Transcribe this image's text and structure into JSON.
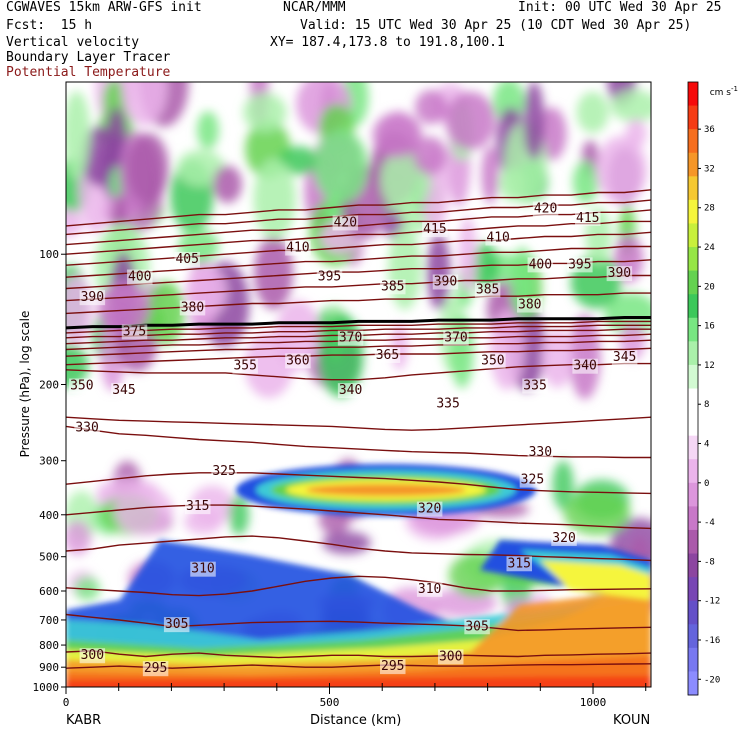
{
  "header": {
    "model_line": "CGWAVES 15km ARW-GFS init",
    "org": "NCAR/MMM",
    "init": "Init: 00 UTC Wed 30 Apr 25",
    "fcst": "Fcst:  15 h",
    "valid": "Valid: 15 UTC Wed 30 Apr 25 (10 CDT Wed 30 Apr 25)",
    "field1": "Vertical velocity",
    "xy": "XY= 187.4,173.8 to 191.8,100.1",
    "field2": "Boundary Layer Tracer",
    "field3": "Potential Temperature",
    "field3_color": "#8b1a1a"
  },
  "colorbar": {
    "unit_label": "cm s",
    "unit_exp": "-1",
    "ticks": [
      "36",
      "32",
      "28",
      "24",
      "20",
      "16",
      "12",
      "8",
      "4",
      "0",
      "-4",
      "-8",
      "-12",
      "-16",
      "-20"
    ],
    "colors": [
      "#f50a0a",
      "#f53c14",
      "#f56e1e",
      "#f59628",
      "#f5c832",
      "#f5f53c",
      "#c8f03c",
      "#96e646",
      "#64d250",
      "#3cc85a",
      "#78e682",
      "#aaf0aa",
      "#d2fad2",
      "#ffffff",
      "#ffffff",
      "#f5d7f5",
      "#ebb4eb",
      "#dc96dc",
      "#c878c8",
      "#aa5aaa",
      "#8c46a0",
      "#7846b4",
      "#6450c8",
      "#6464dc",
      "#7878f0",
      "#8c8cff"
    ]
  },
  "chart_data": {
    "type": "heatmap",
    "title": "Vertical velocity",
    "ylabel": "Pressure (hPa), log scale",
    "xlabel": "Distance (km)",
    "y_scale": "log",
    "y_ticks": [
      100,
      200,
      300,
      400,
      500,
      600,
      700,
      800,
      900,
      1000
    ],
    "x_ticks": [
      0,
      500,
      1000
    ],
    "xlim": [
      0,
      1110
    ],
    "ylim": [
      1000,
      40
    ],
    "x_endpoints": [
      "KABR",
      "KOUN"
    ],
    "theta_contours": [
      {
        "value": 295,
        "p": [
          905,
          900,
          895,
          900,
          905,
          900,
          895,
          890,
          895,
          900,
          900,
          895,
          890,
          892,
          895,
          895,
          893,
          890,
          888,
          888,
          886,
          885,
          884
        ]
      },
      {
        "value": 300,
        "p": [
          830,
          825,
          840,
          850,
          840,
          835,
          845,
          850,
          855,
          850,
          845,
          845,
          850,
          850,
          848,
          845,
          848,
          850,
          845,
          843,
          840,
          838,
          835
        ]
      },
      {
        "value": 305,
        "p": [
          680,
          690,
          700,
          712,
          725,
          720,
          715,
          710,
          708,
          706,
          705,
          708,
          712,
          715,
          718,
          722,
          730,
          740,
          738,
          735,
          732,
          730,
          728
        ]
      },
      {
        "value": 310,
        "p": [
          590,
          595,
          600,
          605,
          612,
          615,
          610,
          600,
          585,
          570,
          560,
          555,
          558,
          565,
          575,
          590,
          600,
          600,
          598,
          596,
          595,
          594,
          593
        ]
      },
      {
        "value": 315,
        "p": [
          485,
          480,
          470,
          465,
          460,
          455,
          450,
          448,
          452,
          460,
          468,
          478,
          485,
          490,
          492,
          494,
          495,
          497,
          500,
          502,
          505,
          507,
          510
        ]
      },
      {
        "value": 320,
        "p": [
          400,
          395,
          390,
          385,
          382,
          380,
          380,
          382,
          385,
          388,
          392,
          396,
          400,
          405,
          410,
          412,
          415,
          418,
          420,
          422,
          425,
          428,
          430
        ]
      },
      {
        "value": 325,
        "p": [
          340,
          335,
          330,
          325,
          322,
          320,
          320,
          320,
          322,
          324,
          326,
          328,
          330,
          333,
          336,
          340,
          345,
          350,
          352,
          354,
          355,
          356,
          357
        ]
      },
      {
        "value": 330,
        "p": [
          250,
          255,
          260,
          262,
          265,
          268,
          270,
          272,
          275,
          278,
          280,
          282,
          284,
          286,
          287,
          288,
          290,
          292,
          293,
          294,
          294,
          295,
          295
        ]
      },
      {
        "value": 335,
        "p": [
          238,
          240,
          242,
          243,
          244,
          245,
          246,
          247,
          248,
          249,
          250,
          252,
          254,
          255,
          254,
          252,
          250,
          248,
          246,
          244,
          242,
          240,
          238
        ]
      },
      {
        "value": 340,
        "p": [
          185,
          186,
          187,
          188,
          188,
          188,
          188,
          190,
          192,
          194,
          195,
          195,
          193,
          190,
          188,
          186,
          184,
          182,
          181,
          180,
          180,
          179,
          179
        ]
      },
      {
        "value": 345,
        "p": [
          180,
          179,
          178,
          177,
          176,
          175,
          174,
          173,
          172,
          172,
          171,
          171,
          170,
          170,
          170,
          169,
          168,
          168,
          167,
          167,
          166,
          166,
          165
        ]
      },
      {
        "value": 350,
        "p": [
          172,
          171,
          170,
          169,
          168,
          167,
          166,
          166,
          165,
          165,
          164,
          164,
          163,
          163,
          162,
          162,
          161,
          161,
          160,
          160,
          159,
          159,
          158
        ]
      },
      {
        "value": 355,
        "p": [
          166,
          165,
          164,
          163,
          162,
          162,
          161,
          160,
          160,
          159,
          159,
          158,
          158,
          157,
          157,
          156,
          156,
          155,
          155,
          155,
          154,
          154,
          153
        ]
      },
      {
        "value": 360,
        "p": [
          161,
          160,
          159,
          158,
          158,
          157,
          156,
          156,
          155,
          155,
          154,
          154,
          153,
          153,
          152,
          152,
          151,
          151,
          150,
          150,
          150,
          149,
          149
        ]
      },
      {
        "value": 365,
        "p": [
          156,
          155,
          155,
          154,
          153,
          153,
          152,
          152,
          151,
          151,
          150,
          150,
          149,
          149,
          149,
          148,
          148,
          147,
          147,
          147,
          146,
          146,
          146
        ]
      },
      {
        "value": 370,
        "p": [
          152,
          151,
          150,
          150,
          149,
          149,
          148,
          148,
          147,
          147,
          147,
          146,
          146,
          146,
          145,
          145,
          145,
          144,
          144,
          144,
          143,
          143,
          143
        ]
      },
      {
        "value": 375,
        "p": [
          148,
          147,
          147,
          146,
          146,
          145,
          145,
          145,
          144,
          144,
          144,
          143,
          143,
          143,
          142,
          142,
          142,
          141,
          141,
          141,
          141,
          140,
          140
        ]
      },
      {
        "value": 380,
        "p": [
          137,
          136,
          135,
          134,
          133,
          132,
          131,
          130,
          130,
          129,
          128,
          128,
          127,
          127,
          126,
          126,
          125,
          125,
          124,
          124,
          124,
          123,
          123
        ]
      },
      {
        "value": 385,
        "p": [
          128,
          127,
          126,
          125,
          124,
          123,
          122,
          121,
          120,
          119,
          119,
          118,
          117,
          117,
          116,
          115,
          115,
          114,
          114,
          113,
          113,
          112,
          112
        ]
      },
      {
        "value": 390,
        "p": [
          120,
          119,
          118,
          117,
          116,
          115,
          114,
          113,
          112,
          111,
          110,
          110,
          109,
          108,
          108,
          107,
          106,
          106,
          105,
          105,
          104,
          104,
          103
        ]
      },
      {
        "value": 395,
        "p": [
          113,
          112,
          111,
          110,
          109,
          108,
          107,
          106,
          105,
          104,
          104,
          103,
          102,
          101,
          101,
          100,
          99,
          99,
          98,
          97,
          97,
          96,
          96
        ]
      },
      {
        "value": 400,
        "p": [
          106,
          105,
          104,
          103,
          102,
          101,
          100,
          99,
          98,
          98,
          97,
          96,
          95,
          95,
          94,
          93,
          93,
          92,
          91,
          91,
          90,
          90,
          89
        ]
      },
      {
        "value": 405,
        "p": [
          100,
          99,
          98,
          97,
          96,
          95,
          94,
          93,
          93,
          92,
          91,
          90,
          90,
          89,
          88,
          88,
          87,
          86,
          86,
          85,
          85,
          84,
          84
        ]
      },
      {
        "value": 410,
        "p": [
          95,
          94,
          93,
          92,
          91,
          90,
          89,
          88,
          88,
          87,
          86,
          86,
          85,
          84,
          84,
          83,
          82,
          82,
          81,
          81,
          80,
          80,
          79
        ]
      },
      {
        "value": 415,
        "p": [
          90,
          89,
          88,
          87,
          86,
          85,
          85,
          84,
          83,
          83,
          82,
          81,
          81,
          80,
          80,
          79,
          78,
          78,
          77,
          77,
          76,
          76,
          75
        ]
      },
      {
        "value": 420,
        "p": [
          86,
          85,
          84,
          83,
          82,
          81,
          81,
          80,
          79,
          79,
          78,
          77,
          77,
          76,
          76,
          75,
          74,
          74,
          73,
          73,
          72,
          72,
          71
        ]
      }
    ],
    "theta_labels": [
      {
        "text": "295",
        "x": 170,
        "p": 900
      },
      {
        "text": "295",
        "x": 620,
        "p": 890
      },
      {
        "text": "300",
        "x": 50,
        "p": 840
      },
      {
        "text": "300",
        "x": 730,
        "p": 845
      },
      {
        "text": "305",
        "x": 210,
        "p": 712
      },
      {
        "text": "305",
        "x": 780,
        "p": 720
      },
      {
        "text": "310",
        "x": 260,
        "p": 530
      },
      {
        "text": "310",
        "x": 690,
        "p": 590
      },
      {
        "text": "315",
        "x": 250,
        "p": 380
      },
      {
        "text": "315",
        "x": 860,
        "p": 515
      },
      {
        "text": "320",
        "x": 690,
        "p": 385
      },
      {
        "text": "320",
        "x": 945,
        "p": 450
      },
      {
        "text": "325",
        "x": 300,
        "p": 315
      },
      {
        "text": "325",
        "x": 885,
        "p": 330
      },
      {
        "text": "330",
        "x": 40,
        "p": 250
      },
      {
        "text": "330",
        "x": 900,
        "p": 285
      },
      {
        "text": "335",
        "x": 725,
        "p": 220
      },
      {
        "text": "335",
        "x": 890,
        "p": 200
      },
      {
        "text": "340",
        "x": 540,
        "p": 205
      },
      {
        "text": "340",
        "x": 985,
        "p": 180
      },
      {
        "text": "345",
        "x": 110,
        "p": 205
      },
      {
        "text": "345",
        "x": 1060,
        "p": 172
      },
      {
        "text": "350",
        "x": 30,
        "p": 200
      },
      {
        "text": "350",
        "x": 810,
        "p": 175
      },
      {
        "text": "355",
        "x": 340,
        "p": 180
      },
      {
        "text": "360",
        "x": 440,
        "p": 175
      },
      {
        "text": "365",
        "x": 610,
        "p": 170
      },
      {
        "text": "370",
        "x": 540,
        "p": 155
      },
      {
        "text": "370",
        "x": 740,
        "p": 155
      },
      {
        "text": "375",
        "x": 130,
        "p": 150
      },
      {
        "text": "380",
        "x": 240,
        "p": 132
      },
      {
        "text": "380",
        "x": 880,
        "p": 130
      },
      {
        "text": "385",
        "x": 620,
        "p": 118
      },
      {
        "text": "385",
        "x": 800,
        "p": 120
      },
      {
        "text": "390",
        "x": 50,
        "p": 125
      },
      {
        "text": "390",
        "x": 720,
        "p": 115
      },
      {
        "text": "390",
        "x": 1050,
        "p": 110
      },
      {
        "text": "395",
        "x": 500,
        "p": 112
      },
      {
        "text": "395",
        "x": 975,
        "p": 105
      },
      {
        "text": "400",
        "x": 140,
        "p": 112
      },
      {
        "text": "400",
        "x": 900,
        "p": 105
      },
      {
        "text": "405",
        "x": 230,
        "p": 102
      },
      {
        "text": "410",
        "x": 440,
        "p": 96
      },
      {
        "text": "410",
        "x": 820,
        "p": 91
      },
      {
        "text": "415",
        "x": 700,
        "p": 87
      },
      {
        "text": "415",
        "x": 990,
        "p": 82
      },
      {
        "text": "420",
        "x": 530,
        "p": 84
      },
      {
        "text": "420",
        "x": 910,
        "p": 78
      }
    ]
  }
}
